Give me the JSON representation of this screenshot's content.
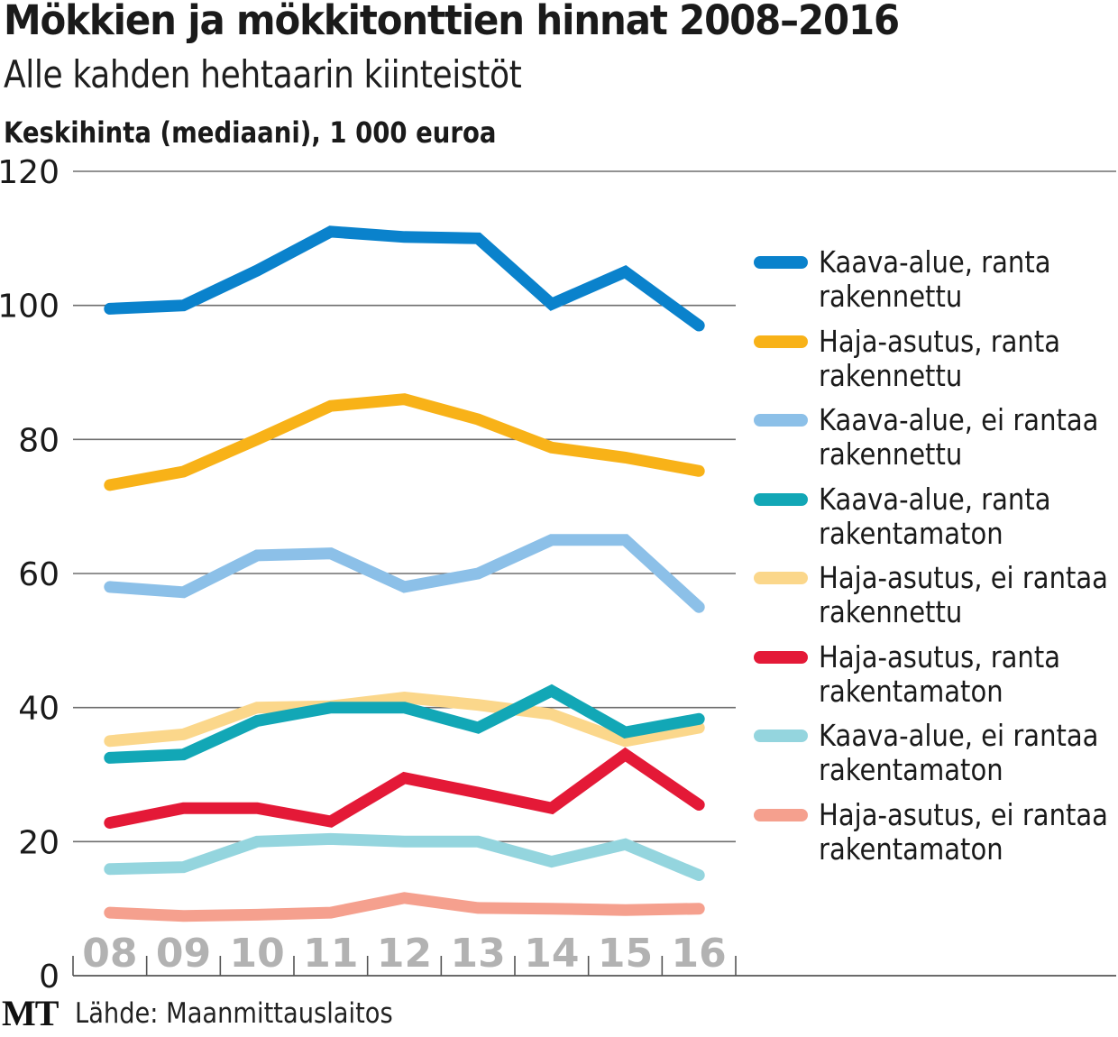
{
  "header": {
    "title": "Mökkien ja mökkitonttien hinnat 2008–2016",
    "subtitle": "Alle kahden hehtaarin kiinteistöt",
    "unit_label": "Keskihinta (mediaani), 1 000 euroa"
  },
  "footer": {
    "logo": "MT",
    "source": "Lähde: Maanmittauslaitos"
  },
  "chart_data": {
    "type": "line",
    "title": "Mökkien ja mökkitonttien hinnat 2008–2016",
    "subtitle": "Alle kahden hehtaarin kiinteistöt",
    "xlabel": "",
    "ylabel": "Keskihinta (mediaani), 1 000 euroa",
    "categories": [
      "08",
      "09",
      "10",
      "11",
      "12",
      "13",
      "14",
      "15",
      "16"
    ],
    "ylim": [
      0,
      120
    ],
    "yticks": [
      0,
      20,
      40,
      60,
      80,
      100,
      120
    ],
    "grid": true,
    "legend_position": "right",
    "series": [
      {
        "name": "Kaava-alue, ranta rakennettu",
        "label_lines": [
          "Kaava-alue, ranta",
          "rakennettu"
        ],
        "color": "#0a82cc",
        "values": [
          99.5,
          100,
          105.2,
          111,
          110.2,
          110,
          100.2,
          105,
          97
        ]
      },
      {
        "name": "Haja-asutus, ranta rakennettu",
        "label_lines": [
          "Haja-asutus, ranta",
          "rakennettu"
        ],
        "color": "#f8b218",
        "values": [
          73.2,
          75.2,
          80,
          85,
          86,
          83,
          78.8,
          77.3,
          75.3
        ]
      },
      {
        "name": "Kaava-alue, ei rantaa rakennettu",
        "label_lines": [
          "Kaava-alue, ei rantaa",
          "rakennettu"
        ],
        "color": "#8cc0e8",
        "values": [
          58,
          57.2,
          62.7,
          63,
          58,
          60,
          65,
          65,
          55
        ]
      },
      {
        "name": "Kaava-alue, ranta rakentamaton",
        "label_lines": [
          "Kaava-alue, ranta",
          "rakentamaton"
        ],
        "color": "#12a7b6",
        "values": [
          32.5,
          33,
          38,
          40,
          40,
          37,
          42.5,
          36.3,
          38.3
        ]
      },
      {
        "name": "Haja-asutus, ei rantaa rakennettu",
        "label_lines": [
          "Haja-asutus, ei rantaa",
          "rakennettu"
        ],
        "color": "#fbd78b",
        "values": [
          35,
          36,
          40,
          40.2,
          41.5,
          40.4,
          39,
          35,
          37
        ]
      },
      {
        "name": "Haja-asutus, ranta rakentamaton",
        "label_lines": [
          "Haja-asutus, ranta",
          "rakentamaton"
        ],
        "color": "#e41937",
        "values": [
          22.8,
          25,
          25,
          23,
          29.5,
          27.3,
          25,
          33,
          25.5
        ]
      },
      {
        "name": "Kaava-alue, ei rantaa rakentamaton",
        "label_lines": [
          "Kaava-alue, ei rantaa",
          "rakentamaton"
        ],
        "color": "#94d5de",
        "values": [
          15.9,
          16.2,
          20,
          20.4,
          20,
          20,
          17,
          19.6,
          15
        ]
      },
      {
        "name": "Haja-asutus, ei rantaa rakentamaton",
        "label_lines": [
          "Haja-asutus, ei rantaa",
          "rakentamaton"
        ],
        "color": "#f5a08e",
        "values": [
          9.4,
          8.9,
          9.1,
          9.4,
          11.6,
          10.1,
          10,
          9.8,
          10
        ]
      }
    ],
    "draw_order": [
      7,
      6,
      5,
      4,
      3,
      2,
      1,
      0
    ]
  }
}
